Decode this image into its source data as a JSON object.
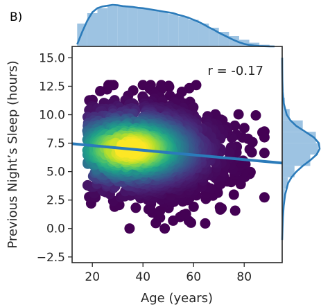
{
  "chart_data": {
    "type": "scatter",
    "panel_label": "B)",
    "xlabel": "Age (years)",
    "ylabel": "Previous Night’s Sleep (hours)",
    "xlim": [
      12,
      95
    ],
    "ylim": [
      -3,
      16
    ],
    "xticks": [
      20,
      40,
      60,
      80
    ],
    "yticks": [
      -2.5,
      0.0,
      2.5,
      5.0,
      7.5,
      10.0,
      12.5,
      15.0
    ],
    "ytick_labels": [
      "−2.5",
      "0.0",
      "2.5",
      "5.0",
      "7.5",
      "10.0",
      "12.5",
      "15.0"
    ],
    "annotation": "r = -0.17",
    "regression_line": {
      "x": [
        12,
        95
      ],
      "y": [
        7.45,
        5.75
      ]
    },
    "colors": {
      "marginal_fill": "#9dc3e2",
      "marginal_line": "#2b7bba",
      "regression": "#2b7bba",
      "density_low": "#440154",
      "density_high": "#fde725"
    },
    "marginal_x": {
      "bin_edges": [
        14,
        18,
        22,
        26,
        30,
        34,
        38,
        42,
        46,
        50,
        54,
        58,
        62,
        66,
        70,
        74,
        78,
        82,
        86,
        90
      ],
      "density": [
        0.55,
        0.8,
        0.92,
        0.97,
        0.98,
        0.95,
        0.92,
        0.88,
        0.84,
        0.78,
        0.72,
        0.64,
        0.55,
        0.45,
        0.35,
        0.25,
        0.16,
        0.09,
        0.04
      ],
      "kde_x": [
        14,
        16,
        18,
        20,
        22,
        24,
        26,
        28,
        30,
        32,
        34,
        36,
        38,
        40,
        42,
        44,
        46,
        48,
        50,
        52,
        54,
        56,
        58,
        60,
        62,
        64,
        66,
        68,
        70,
        72,
        74,
        76,
        78,
        80,
        82,
        84,
        86,
        88,
        90,
        92
      ],
      "kde_y": [
        0.05,
        0.35,
        0.62,
        0.82,
        0.92,
        0.96,
        0.98,
        1.0,
        0.99,
        0.97,
        0.96,
        0.95,
        0.93,
        0.92,
        0.9,
        0.88,
        0.86,
        0.84,
        0.82,
        0.8,
        0.76,
        0.73,
        0.69,
        0.64,
        0.59,
        0.53,
        0.46,
        0.4,
        0.33,
        0.27,
        0.21,
        0.15,
        0.1,
        0.06,
        0.035,
        0.02,
        0.01,
        0.005,
        0.002,
        0.0
      ]
    },
    "marginal_y": {
      "bin_edges": [
        -0.5,
        0.5,
        1.5,
        2.5,
        3.5,
        4.5,
        5.5,
        6.5,
        7.5,
        8.5,
        9.5,
        10.5,
        11.5,
        12.5
      ],
      "density": [
        0.01,
        0.02,
        0.04,
        0.07,
        0.15,
        0.33,
        0.75,
        0.96,
        0.9,
        0.55,
        0.2,
        0.07,
        0.02
      ],
      "kde_y": [
        -1.0,
        0.0,
        1.0,
        2.0,
        3.0,
        4.0,
        4.5,
        5.0,
        5.5,
        6.0,
        6.5,
        7.0,
        7.5,
        8.0,
        8.5,
        9.0,
        9.5,
        10.0,
        11.0,
        12.0,
        13.0,
        14.0,
        15.0
      ],
      "kde_x": [
        0.0,
        0.01,
        0.02,
        0.04,
        0.08,
        0.16,
        0.25,
        0.38,
        0.55,
        0.75,
        0.92,
        1.0,
        0.98,
        0.85,
        0.62,
        0.38,
        0.22,
        0.12,
        0.04,
        0.015,
        0.005,
        0.002,
        0.0
      ]
    }
  }
}
